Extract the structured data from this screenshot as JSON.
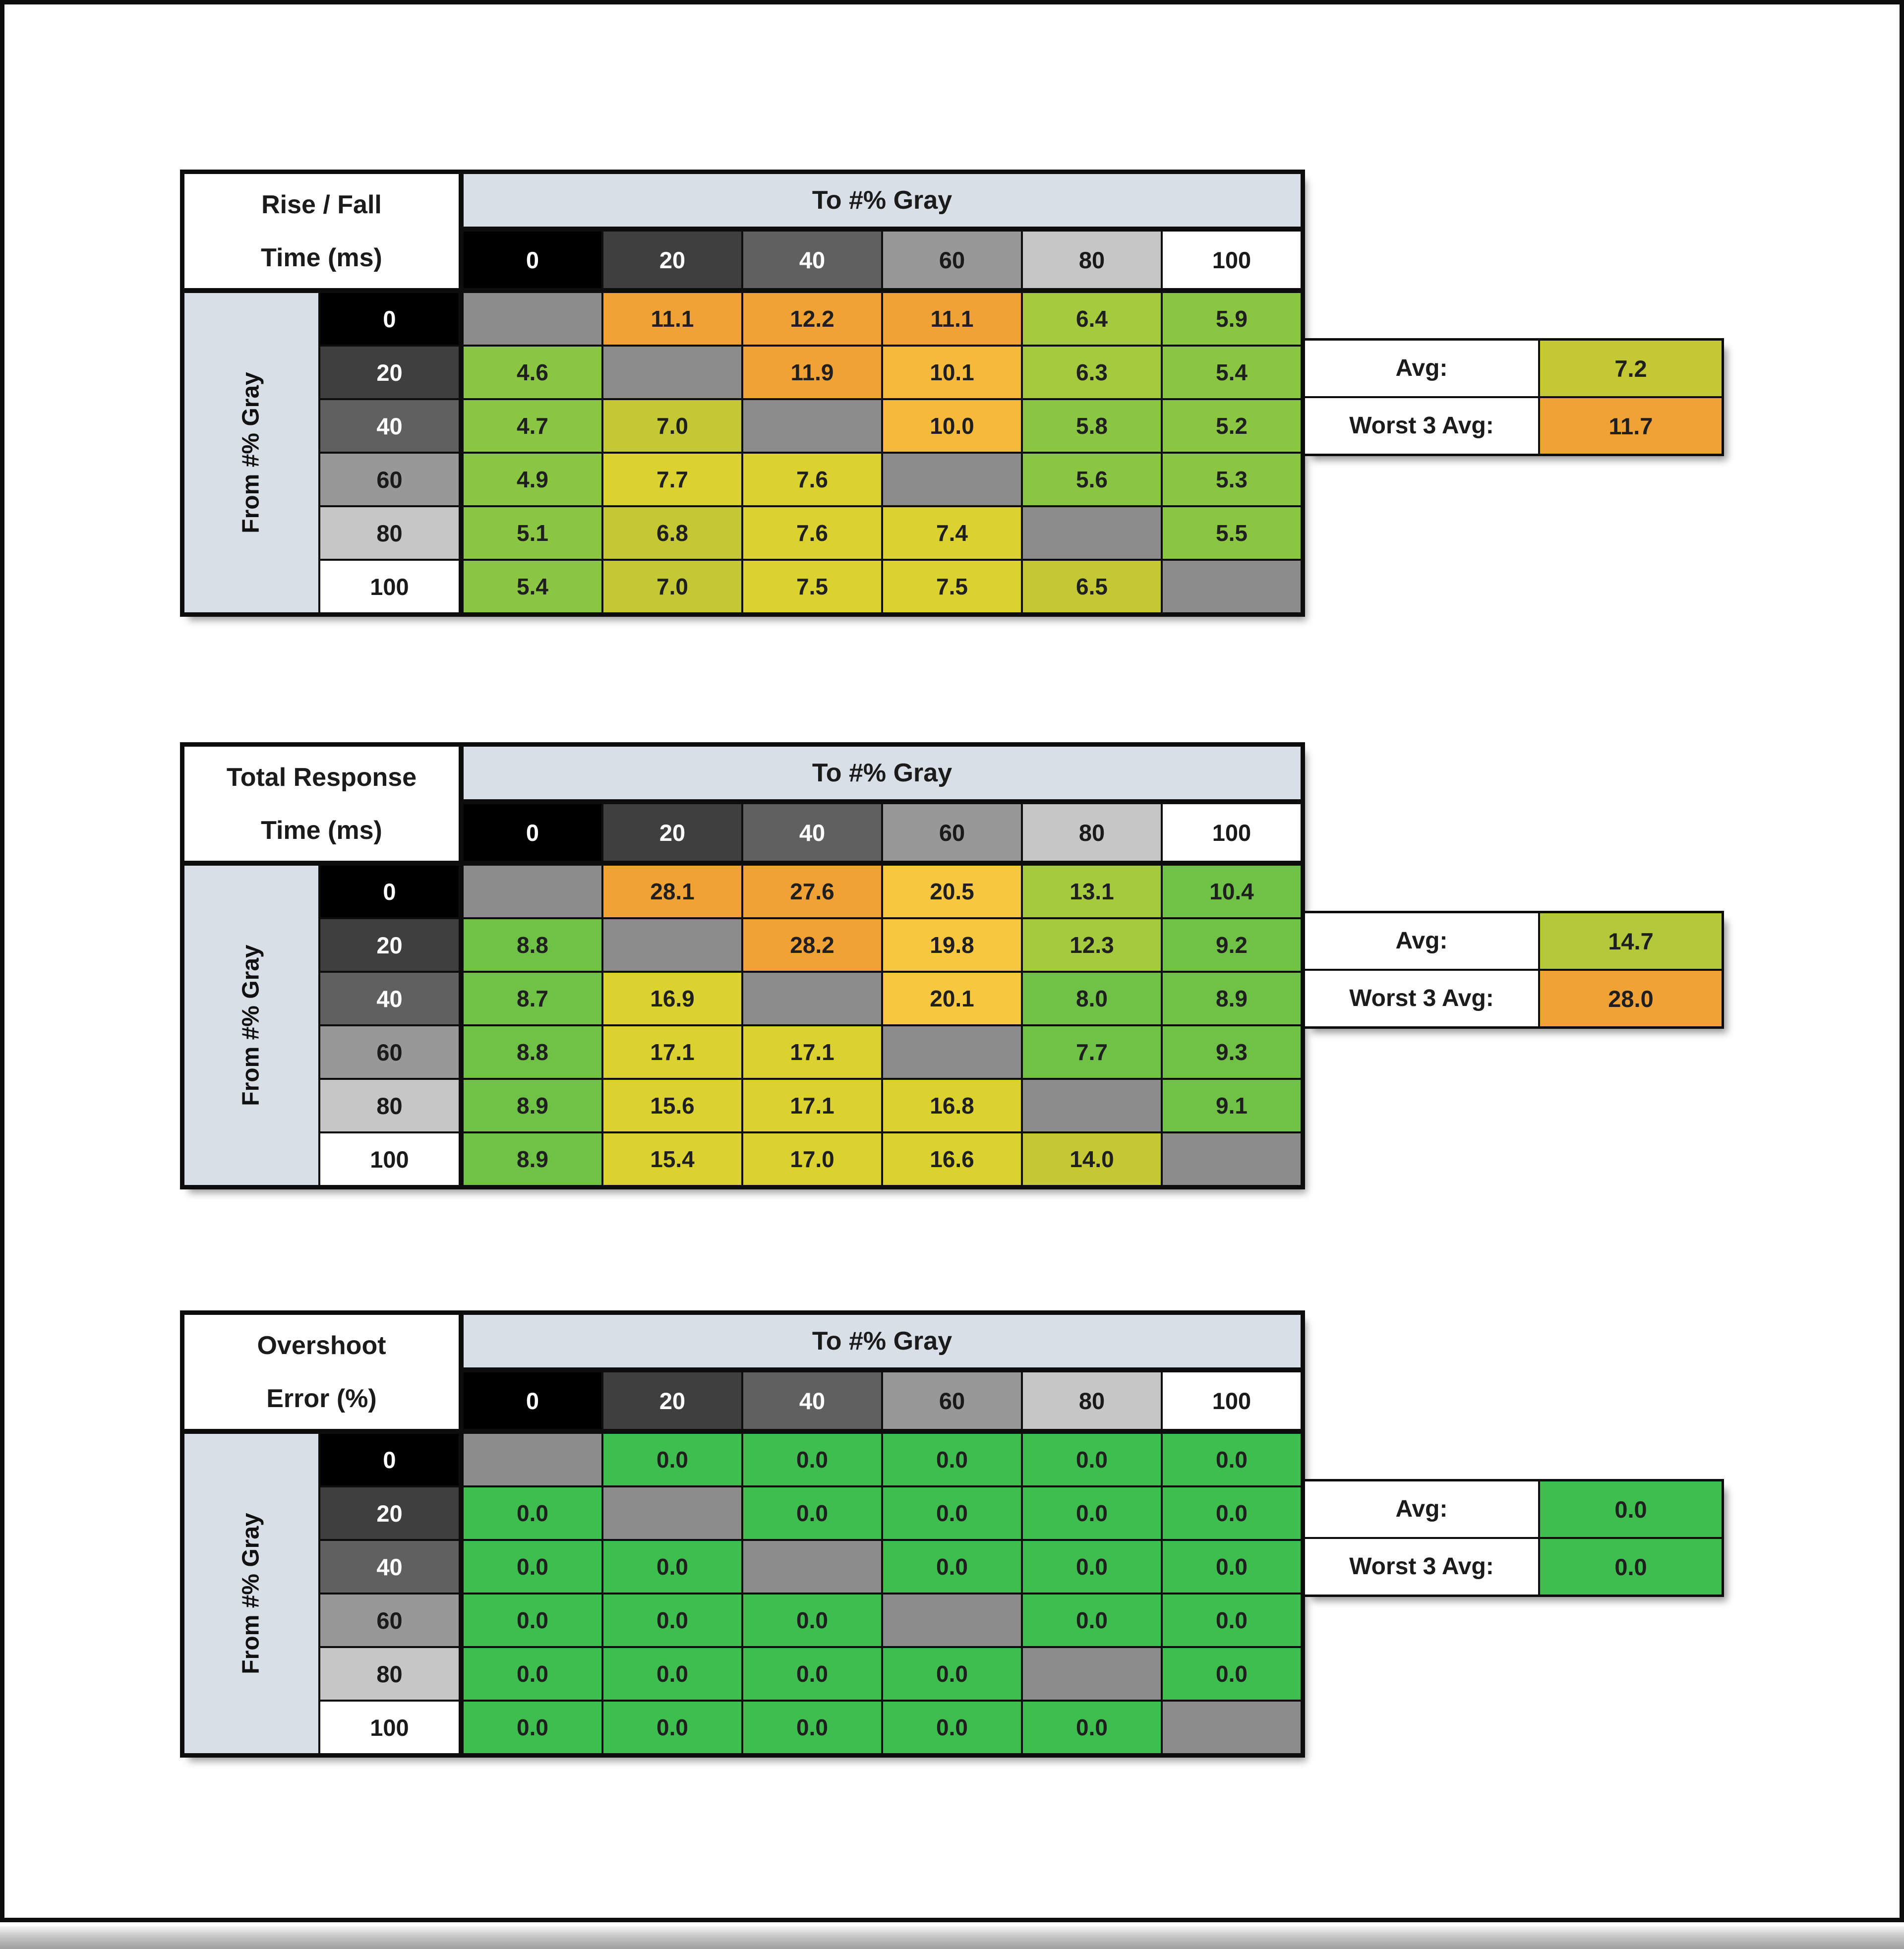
{
  "palette": {
    "or": "#F1A235",
    "am": "#F6BA3A",
    "a2": "#F7C83F",
    "yl": "#DCD22F",
    "ol": "#C4C833",
    "yo": "#B3C93A",
    "yg": "#A5CA3E",
    "gr": "#8BC642",
    "g2": "#70C247",
    "bg": "#3EBE4F",
    "dg": "#8C8C8C",
    "band_bg": "#D8DFE7",
    "grid_line": "#0D0D0D",
    "col_bgs": [
      "#000000",
      "#3F3F3F",
      "#606060",
      "#989898",
      "#C6C6C6",
      "#FFFFFF"
    ],
    "col_fgs": [
      "#FFFFFF",
      "#FFFFFF",
      "#FFFFFF",
      "#1A1A1A",
      "#1A1A1A",
      "#1A1A1A"
    ]
  },
  "header": {
    "to_label": "To #% Gray",
    "from_label": "From #% Gray",
    "col_values": [
      "0",
      "20",
      "40",
      "60",
      "80",
      "100"
    ]
  },
  "tables": [
    {
      "name": "rise-fall-time",
      "title_lines": [
        "Rise / Fall",
        "Time (ms)"
      ],
      "rows": [
        {
          "from": "0",
          "cells": [
            [
              "",
              "dg"
            ],
            [
              "11.1",
              "or"
            ],
            [
              "12.2",
              "or"
            ],
            [
              "11.1",
              "or"
            ],
            [
              "6.4",
              "yg"
            ],
            [
              "5.9",
              "gr"
            ]
          ]
        },
        {
          "from": "20",
          "cells": [
            [
              "4.6",
              "gr"
            ],
            [
              "",
              "dg"
            ],
            [
              "11.9",
              "or"
            ],
            [
              "10.1",
              "am"
            ],
            [
              "6.3",
              "yg"
            ],
            [
              "5.4",
              "gr"
            ]
          ]
        },
        {
          "from": "40",
          "cells": [
            [
              "4.7",
              "gr"
            ],
            [
              "7.0",
              "ol"
            ],
            [
              "",
              "dg"
            ],
            [
              "10.0",
              "am"
            ],
            [
              "5.8",
              "gr"
            ],
            [
              "5.2",
              "gr"
            ]
          ]
        },
        {
          "from": "60",
          "cells": [
            [
              "4.9",
              "gr"
            ],
            [
              "7.7",
              "yl"
            ],
            [
              "7.6",
              "yl"
            ],
            [
              "",
              "dg"
            ],
            [
              "5.6",
              "gr"
            ],
            [
              "5.3",
              "gr"
            ]
          ]
        },
        {
          "from": "80",
          "cells": [
            [
              "5.1",
              "gr"
            ],
            [
              "6.8",
              "ol"
            ],
            [
              "7.6",
              "yl"
            ],
            [
              "7.4",
              "yl"
            ],
            [
              "",
              "dg"
            ],
            [
              "5.5",
              "gr"
            ]
          ]
        },
        {
          "from": "100",
          "cells": [
            [
              "5.4",
              "gr"
            ],
            [
              "7.0",
              "ol"
            ],
            [
              "7.5",
              "yl"
            ],
            [
              "7.5",
              "yl"
            ],
            [
              "6.5",
              "ol"
            ],
            [
              "",
              "dg"
            ]
          ]
        }
      ],
      "summary": {
        "avg_label": "Avg:",
        "avg_value": "7.2",
        "avg_color": "ol",
        "worst_label": "Worst 3 Avg:",
        "worst_value": "11.7",
        "worst_color": "or"
      }
    },
    {
      "name": "total-response-time",
      "title_lines": [
        "Total Response",
        "Time (ms)"
      ],
      "rows": [
        {
          "from": "0",
          "cells": [
            [
              "",
              "dg"
            ],
            [
              "28.1",
              "or"
            ],
            [
              "27.6",
              "or"
            ],
            [
              "20.5",
              "a2"
            ],
            [
              "13.1",
              "yg"
            ],
            [
              "10.4",
              "g2"
            ]
          ]
        },
        {
          "from": "20",
          "cells": [
            [
              "8.8",
              "g2"
            ],
            [
              "",
              "dg"
            ],
            [
              "28.2",
              "or"
            ],
            [
              "19.8",
              "a2"
            ],
            [
              "12.3",
              "yg"
            ],
            [
              "9.2",
              "g2"
            ]
          ]
        },
        {
          "from": "40",
          "cells": [
            [
              "8.7",
              "g2"
            ],
            [
              "16.9",
              "yl"
            ],
            [
              "",
              "dg"
            ],
            [
              "20.1",
              "a2"
            ],
            [
              "8.0",
              "g2"
            ],
            [
              "8.9",
              "g2"
            ]
          ]
        },
        {
          "from": "60",
          "cells": [
            [
              "8.8",
              "g2"
            ],
            [
              "17.1",
              "yl"
            ],
            [
              "17.1",
              "yl"
            ],
            [
              "",
              "dg"
            ],
            [
              "7.7",
              "g2"
            ],
            [
              "9.3",
              "g2"
            ]
          ]
        },
        {
          "from": "80",
          "cells": [
            [
              "8.9",
              "g2"
            ],
            [
              "15.6",
              "yl"
            ],
            [
              "17.1",
              "yl"
            ],
            [
              "16.8",
              "yl"
            ],
            [
              "",
              "dg"
            ],
            [
              "9.1",
              "g2"
            ]
          ]
        },
        {
          "from": "100",
          "cells": [
            [
              "8.9",
              "g2"
            ],
            [
              "15.4",
              "yl"
            ],
            [
              "17.0",
              "yl"
            ],
            [
              "16.6",
              "yl"
            ],
            [
              "14.0",
              "ol"
            ],
            [
              "",
              "dg"
            ]
          ]
        }
      ],
      "summary": {
        "avg_label": "Avg:",
        "avg_value": "14.7",
        "avg_color": "yo",
        "worst_label": "Worst 3 Avg:",
        "worst_value": "28.0",
        "worst_color": "or"
      }
    },
    {
      "name": "overshoot-error",
      "title_lines": [
        "Overshoot",
        "Error (%)"
      ],
      "rows": [
        {
          "from": "0",
          "cells": [
            [
              "",
              "dg"
            ],
            [
              "0.0",
              "bg"
            ],
            [
              "0.0",
              "bg"
            ],
            [
              "0.0",
              "bg"
            ],
            [
              "0.0",
              "bg"
            ],
            [
              "0.0",
              "bg"
            ]
          ]
        },
        {
          "from": "20",
          "cells": [
            [
              "0.0",
              "bg"
            ],
            [
              "",
              "dg"
            ],
            [
              "0.0",
              "bg"
            ],
            [
              "0.0",
              "bg"
            ],
            [
              "0.0",
              "bg"
            ],
            [
              "0.0",
              "bg"
            ]
          ]
        },
        {
          "from": "40",
          "cells": [
            [
              "0.0",
              "bg"
            ],
            [
              "0.0",
              "bg"
            ],
            [
              "",
              "dg"
            ],
            [
              "0.0",
              "bg"
            ],
            [
              "0.0",
              "bg"
            ],
            [
              "0.0",
              "bg"
            ]
          ]
        },
        {
          "from": "60",
          "cells": [
            [
              "0.0",
              "bg"
            ],
            [
              "0.0",
              "bg"
            ],
            [
              "0.0",
              "bg"
            ],
            [
              "",
              "dg"
            ],
            [
              "0.0",
              "bg"
            ],
            [
              "0.0",
              "bg"
            ]
          ]
        },
        {
          "from": "80",
          "cells": [
            [
              "0.0",
              "bg"
            ],
            [
              "0.0",
              "bg"
            ],
            [
              "0.0",
              "bg"
            ],
            [
              "0.0",
              "bg"
            ],
            [
              "",
              "dg"
            ],
            [
              "0.0",
              "bg"
            ]
          ]
        },
        {
          "from": "100",
          "cells": [
            [
              "0.0",
              "bg"
            ],
            [
              "0.0",
              "bg"
            ],
            [
              "0.0",
              "bg"
            ],
            [
              "0.0",
              "bg"
            ],
            [
              "0.0",
              "bg"
            ],
            [
              "",
              "dg"
            ]
          ]
        }
      ],
      "summary": {
        "avg_label": "Avg:",
        "avg_value": "0.0",
        "avg_color": "bg",
        "worst_label": "Worst 3 Avg:",
        "worst_value": "0.0",
        "worst_color": "bg"
      }
    }
  ],
  "chart_data": [
    {
      "type": "heatmap",
      "title": "Rise / Fall Time (ms)",
      "xlabel": "To #% Gray",
      "ylabel": "From #% Gray",
      "x": [
        0,
        20,
        40,
        60,
        80,
        100
      ],
      "y": [
        0,
        20,
        40,
        60,
        80,
        100
      ],
      "values": [
        [
          null,
          11.1,
          12.2,
          11.1,
          6.4,
          5.9
        ],
        [
          4.6,
          null,
          11.9,
          10.1,
          6.3,
          5.4
        ],
        [
          4.7,
          7.0,
          null,
          10.0,
          5.8,
          5.2
        ],
        [
          4.9,
          7.7,
          7.6,
          null,
          5.6,
          5.3
        ],
        [
          5.1,
          6.8,
          7.6,
          7.4,
          null,
          5.5
        ],
        [
          5.4,
          7.0,
          7.5,
          7.5,
          6.5,
          null
        ]
      ],
      "avg": 7.2,
      "worst_3_avg": 11.7
    },
    {
      "type": "heatmap",
      "title": "Total Response Time (ms)",
      "xlabel": "To #% Gray",
      "ylabel": "From #% Gray",
      "x": [
        0,
        20,
        40,
        60,
        80,
        100
      ],
      "y": [
        0,
        20,
        40,
        60,
        80,
        100
      ],
      "values": [
        [
          null,
          28.1,
          27.6,
          20.5,
          13.1,
          10.4
        ],
        [
          8.8,
          null,
          28.2,
          19.8,
          12.3,
          9.2
        ],
        [
          8.7,
          16.9,
          null,
          20.1,
          8.0,
          8.9
        ],
        [
          8.8,
          17.1,
          17.1,
          null,
          7.7,
          9.3
        ],
        [
          8.9,
          15.6,
          17.1,
          16.8,
          null,
          9.1
        ],
        [
          8.9,
          15.4,
          17.0,
          16.6,
          14.0,
          null
        ]
      ],
      "avg": 14.7,
      "worst_3_avg": 28.0
    },
    {
      "type": "heatmap",
      "title": "Overshoot Error (%)",
      "xlabel": "To #% Gray",
      "ylabel": "From #% Gray",
      "x": [
        0,
        20,
        40,
        60,
        80,
        100
      ],
      "y": [
        0,
        20,
        40,
        60,
        80,
        100
      ],
      "values": [
        [
          null,
          0.0,
          0.0,
          0.0,
          0.0,
          0.0
        ],
        [
          0.0,
          null,
          0.0,
          0.0,
          0.0,
          0.0
        ],
        [
          0.0,
          0.0,
          null,
          0.0,
          0.0,
          0.0
        ],
        [
          0.0,
          0.0,
          0.0,
          null,
          0.0,
          0.0
        ],
        [
          0.0,
          0.0,
          0.0,
          0.0,
          null,
          0.0
        ],
        [
          0.0,
          0.0,
          0.0,
          0.0,
          0.0,
          null
        ]
      ],
      "avg": 0.0,
      "worst_3_avg": 0.0
    }
  ]
}
